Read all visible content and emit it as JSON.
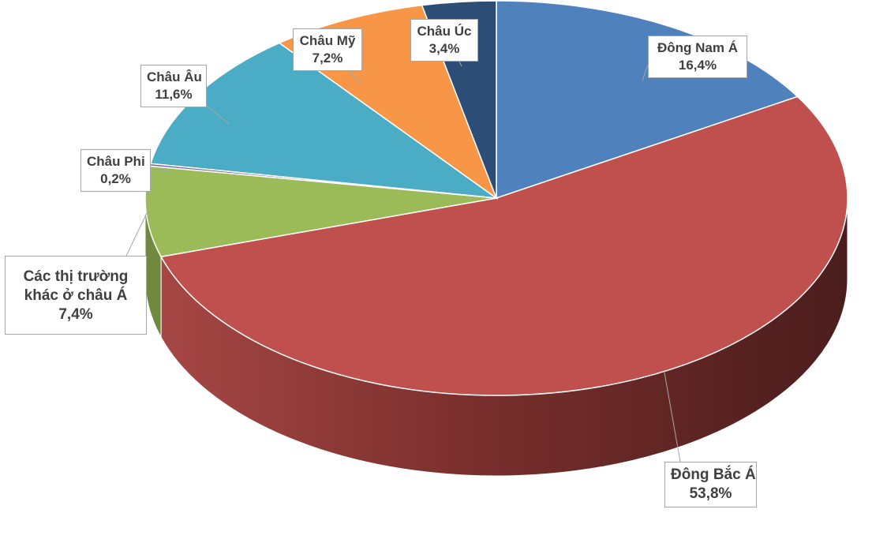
{
  "chart_data": {
    "type": "pie",
    "style": "3d",
    "categories": [
      "Đông Nam Á",
      "Đông Bắc Á",
      "Các thị trường khác ở châu Á",
      "Châu Phi",
      "Châu Âu",
      "Châu Mỹ",
      "Châu Úc"
    ],
    "values": [
      16.4,
      53.8,
      7.4,
      0.2,
      11.6,
      7.2,
      3.4
    ],
    "value_labels": [
      "16,4%",
      "53,8%",
      "7,4%",
      "0,2%",
      "11,6%",
      "7,2%",
      "3,4%"
    ],
    "colors": [
      "#4f81bd",
      "#c0504d",
      "#9bbb59",
      "#8064a2",
      "#4bacc6",
      "#f79646",
      "#2c4d75"
    ],
    "side_colors": [
      "#3a5f8c",
      "#8c3a38",
      "#6f8a3f",
      "#5d4977",
      "#357f92",
      "#b46c30",
      "#1f3754"
    ],
    "title": "",
    "legend": "none",
    "data_labels": "callouts"
  }
}
